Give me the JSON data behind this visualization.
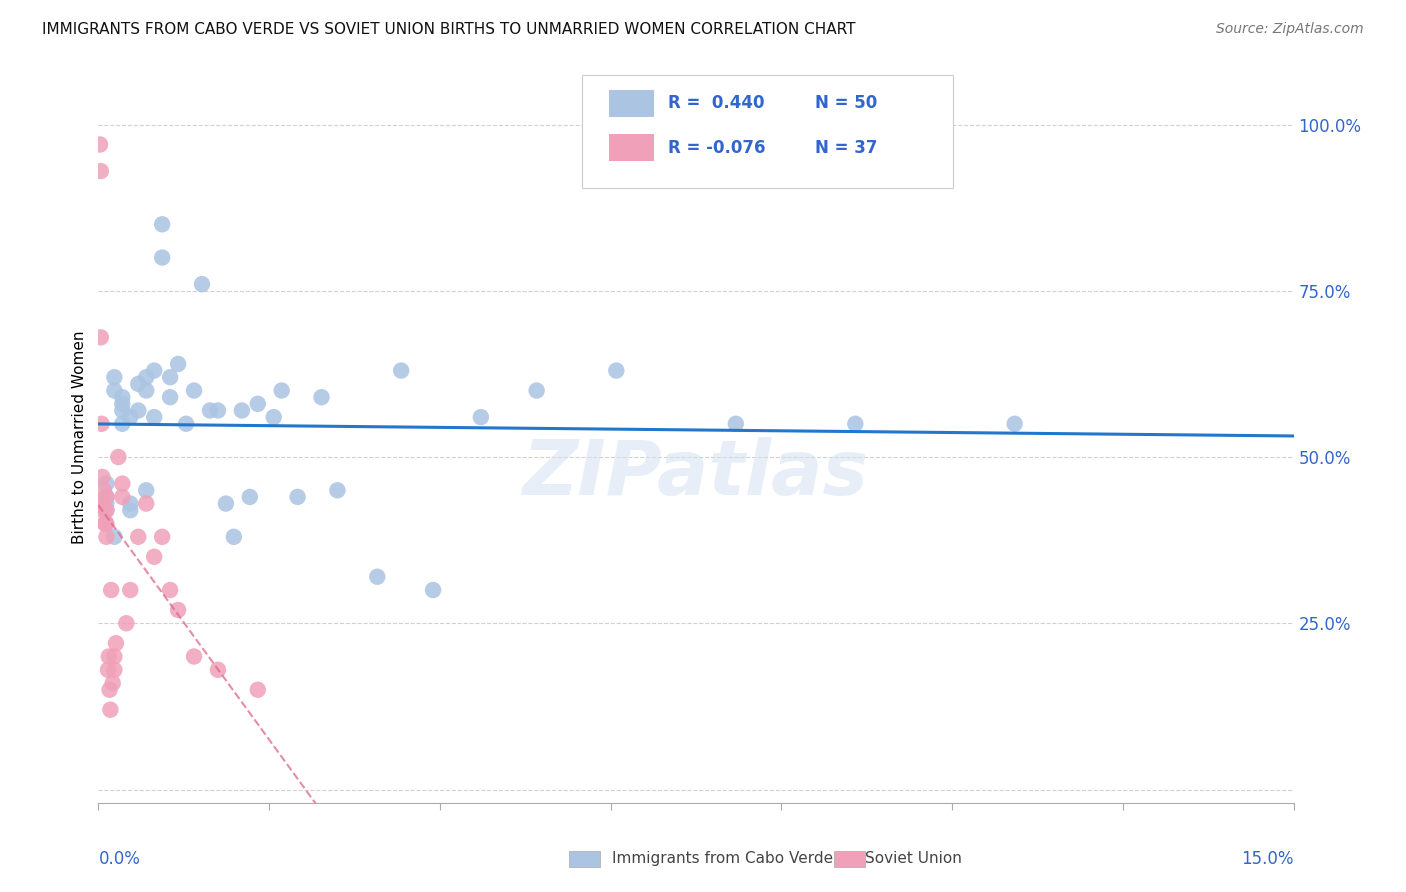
{
  "title": "IMMIGRANTS FROM CABO VERDE VS SOVIET UNION BIRTHS TO UNMARRIED WOMEN CORRELATION CHART",
  "source": "Source: ZipAtlas.com",
  "ylabel": "Births to Unmarried Women",
  "y_ticks": [
    0.0,
    0.25,
    0.5,
    0.75,
    1.0
  ],
  "y_tick_labels": [
    "",
    "25.0%",
    "50.0%",
    "75.0%",
    "100.0%"
  ],
  "x_lim": [
    0.0,
    0.15
  ],
  "y_lim": [
    -0.02,
    1.08
  ],
  "cabo_verde_color": "#aac4e2",
  "soviet_color": "#f0a0b8",
  "cabo_verde_line_color": "#2277cc",
  "soviet_line_color": "#dd6688",
  "cabo_verde_R": 0.44,
  "cabo_verde_N": 50,
  "soviet_R": -0.076,
  "soviet_N": 37,
  "cabo_verde_x": [
    0.001,
    0.001,
    0.001,
    0.001,
    0.002,
    0.002,
    0.002,
    0.003,
    0.003,
    0.003,
    0.003,
    0.004,
    0.004,
    0.004,
    0.005,
    0.005,
    0.006,
    0.006,
    0.006,
    0.007,
    0.007,
    0.008,
    0.008,
    0.009,
    0.009,
    0.01,
    0.011,
    0.012,
    0.013,
    0.014,
    0.015,
    0.016,
    0.017,
    0.018,
    0.019,
    0.02,
    0.022,
    0.023,
    0.025,
    0.028,
    0.03,
    0.035,
    0.038,
    0.042,
    0.048,
    0.055,
    0.065,
    0.08,
    0.095,
    0.115
  ],
  "cabo_verde_y": [
    0.42,
    0.44,
    0.43,
    0.46,
    0.6,
    0.62,
    0.38,
    0.55,
    0.59,
    0.57,
    0.58,
    0.42,
    0.56,
    0.43,
    0.61,
    0.57,
    0.6,
    0.62,
    0.45,
    0.63,
    0.56,
    0.8,
    0.85,
    0.62,
    0.59,
    0.64,
    0.55,
    0.6,
    0.76,
    0.57,
    0.57,
    0.43,
    0.38,
    0.57,
    0.44,
    0.58,
    0.56,
    0.6,
    0.44,
    0.59,
    0.45,
    0.32,
    0.63,
    0.3,
    0.56,
    0.6,
    0.63,
    0.55,
    0.55,
    0.55
  ],
  "soviet_x": [
    0.0002,
    0.0003,
    0.0003,
    0.0004,
    0.0005,
    0.0005,
    0.0006,
    0.0007,
    0.0008,
    0.0009,
    0.001,
    0.001,
    0.001,
    0.001,
    0.0012,
    0.0013,
    0.0014,
    0.0015,
    0.0016,
    0.0018,
    0.002,
    0.002,
    0.0022,
    0.0025,
    0.003,
    0.003,
    0.0035,
    0.004,
    0.005,
    0.006,
    0.007,
    0.008,
    0.009,
    0.01,
    0.012,
    0.015,
    0.02
  ],
  "soviet_y": [
    0.97,
    0.93,
    0.68,
    0.55,
    0.43,
    0.47,
    0.42,
    0.45,
    0.4,
    0.4,
    0.38,
    0.4,
    0.42,
    0.44,
    0.18,
    0.2,
    0.15,
    0.12,
    0.3,
    0.16,
    0.18,
    0.2,
    0.22,
    0.5,
    0.44,
    0.46,
    0.25,
    0.3,
    0.38,
    0.43,
    0.35,
    0.38,
    0.3,
    0.27,
    0.2,
    0.18,
    0.15
  ],
  "watermark": "ZIPatlas",
  "background_color": "#ffffff",
  "grid_color": "#cccccc",
  "legend_blue_R": "R =  0.440",
  "legend_blue_N": "N = 50",
  "legend_pink_R": "R = -0.076",
  "legend_pink_N": "N = 37"
}
